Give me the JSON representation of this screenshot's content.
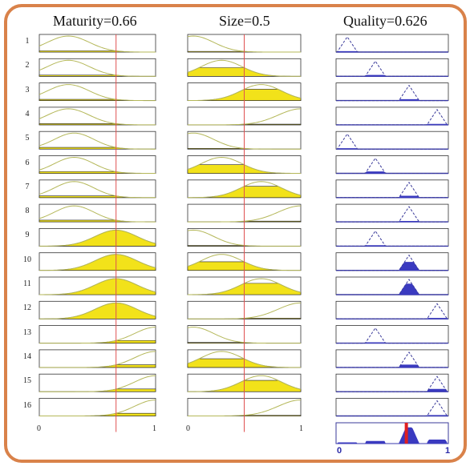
{
  "titles": {
    "maturity": "Maturity=0.66",
    "size": "Size=0.5",
    "quality": "Quality=0.626"
  },
  "rows": [
    "1",
    "2",
    "3",
    "4",
    "5",
    "6",
    "7",
    "8",
    "9",
    "10",
    "11",
    "12",
    "13",
    "14",
    "15",
    "16"
  ],
  "axis_ticks": {
    "maturity": [
      "0",
      "1"
    ],
    "size": [
      "0",
      "1"
    ],
    "quality": [
      "0",
      "1"
    ]
  },
  "inputs": {
    "maturity": 0.66,
    "size": 0.5
  },
  "output": {
    "quality": 0.626
  },
  "rules": [
    {
      "maturity": "low",
      "size": "low",
      "quality": "very-low"
    },
    {
      "maturity": "low",
      "size": "medium",
      "quality": "low"
    },
    {
      "maturity": "low",
      "size": "high",
      "quality": "medium"
    },
    {
      "maturity": "low",
      "size": "very-high",
      "quality": "high"
    },
    {
      "maturity": "medium",
      "size": "low",
      "quality": "very-low"
    },
    {
      "maturity": "medium",
      "size": "medium",
      "quality": "low"
    },
    {
      "maturity": "medium",
      "size": "high",
      "quality": "medium"
    },
    {
      "maturity": "medium",
      "size": "very-high",
      "quality": "medium"
    },
    {
      "maturity": "high",
      "size": "low",
      "quality": "low"
    },
    {
      "maturity": "high",
      "size": "medium",
      "quality": "medium"
    },
    {
      "maturity": "high",
      "size": "high",
      "quality": "medium"
    },
    {
      "maturity": "high",
      "size": "very-high",
      "quality": "high"
    },
    {
      "maturity": "very-high",
      "size": "low",
      "quality": "low"
    },
    {
      "maturity": "very-high",
      "size": "medium",
      "quality": "medium"
    },
    {
      "maturity": "very-high",
      "size": "high",
      "quality": "high"
    },
    {
      "maturity": "very-high",
      "size": "very-high",
      "quality": "high"
    }
  ],
  "colors": {
    "frame": "#d9824a",
    "fill_yellow": "#f2e21a",
    "curve_yellow": "#b5b85a",
    "fill_blue": "#3a3ac0",
    "curve_blue": "#3a3a9a",
    "input_line": "#e05050",
    "output_marker": "#e02020"
  }
}
